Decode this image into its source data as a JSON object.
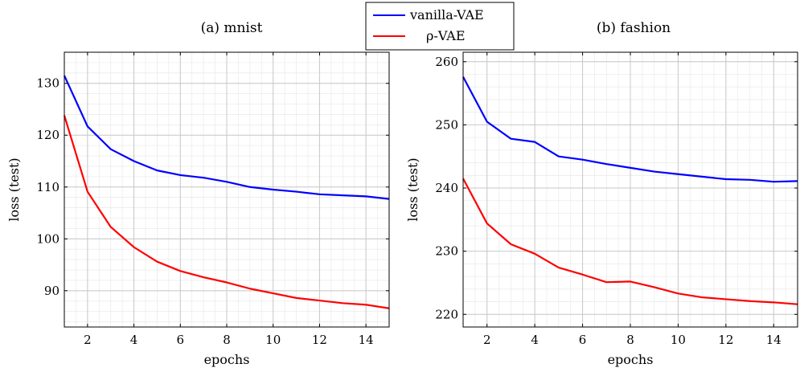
{
  "legend": {
    "placement": "top-center",
    "entries": [
      {
        "label": "vanilla-VAE",
        "color": "#0000ff"
      },
      {
        "label": "ρ-VAE",
        "color": "#ff0000"
      }
    ]
  },
  "chart_data": [
    {
      "type": "line",
      "title": "(a) mnist",
      "xlabel": "epochs",
      "ylabel": "loss (test)",
      "xlim": [
        1,
        15
      ],
      "ylim": [
        83,
        136
      ],
      "xticks": [
        2,
        4,
        6,
        8,
        10,
        12,
        14
      ],
      "yticks": [
        90,
        100,
        110,
        120,
        130
      ],
      "grid": true,
      "x": [
        1,
        2,
        3,
        4,
        5,
        6,
        7,
        8,
        9,
        10,
        11,
        12,
        13,
        14,
        15
      ],
      "series": [
        {
          "name": "vanilla-VAE",
          "color": "#0000ff",
          "values": [
            131.5,
            121.7,
            117.3,
            115.0,
            113.2,
            112.3,
            111.8,
            111.0,
            110.0,
            109.5,
            109.1,
            108.6,
            108.4,
            108.2,
            107.7
          ]
        },
        {
          "name": "ρ-VAE",
          "color": "#ff0000",
          "values": [
            123.8,
            109.1,
            102.3,
            98.4,
            95.6,
            93.8,
            92.6,
            91.6,
            90.4,
            89.5,
            88.6,
            88.1,
            87.6,
            87.3,
            86.6
          ]
        }
      ]
    },
    {
      "type": "line",
      "title": "(b) fashion",
      "xlabel": "epochs",
      "ylabel": "loss (test)",
      "xlim": [
        1,
        15
      ],
      "ylim": [
        218,
        261.5
      ],
      "xticks": [
        2,
        4,
        6,
        8,
        10,
        12,
        14
      ],
      "yticks": [
        220,
        230,
        240,
        250,
        260
      ],
      "grid": true,
      "x": [
        1,
        2,
        3,
        4,
        5,
        6,
        7,
        8,
        9,
        10,
        11,
        12,
        13,
        14,
        15
      ],
      "series": [
        {
          "name": "vanilla-VAE",
          "color": "#0000ff",
          "values": [
            257.6,
            250.5,
            247.8,
            247.3,
            245.0,
            244.5,
            243.8,
            243.2,
            242.6,
            242.2,
            241.8,
            241.4,
            241.3,
            241.0,
            241.1
          ]
        },
        {
          "name": "ρ-VAE",
          "color": "#ff0000",
          "values": [
            241.5,
            234.4,
            231.1,
            229.6,
            227.4,
            226.3,
            225.1,
            225.2,
            224.3,
            223.3,
            222.7,
            222.4,
            222.1,
            221.9,
            221.6
          ]
        }
      ]
    }
  ]
}
